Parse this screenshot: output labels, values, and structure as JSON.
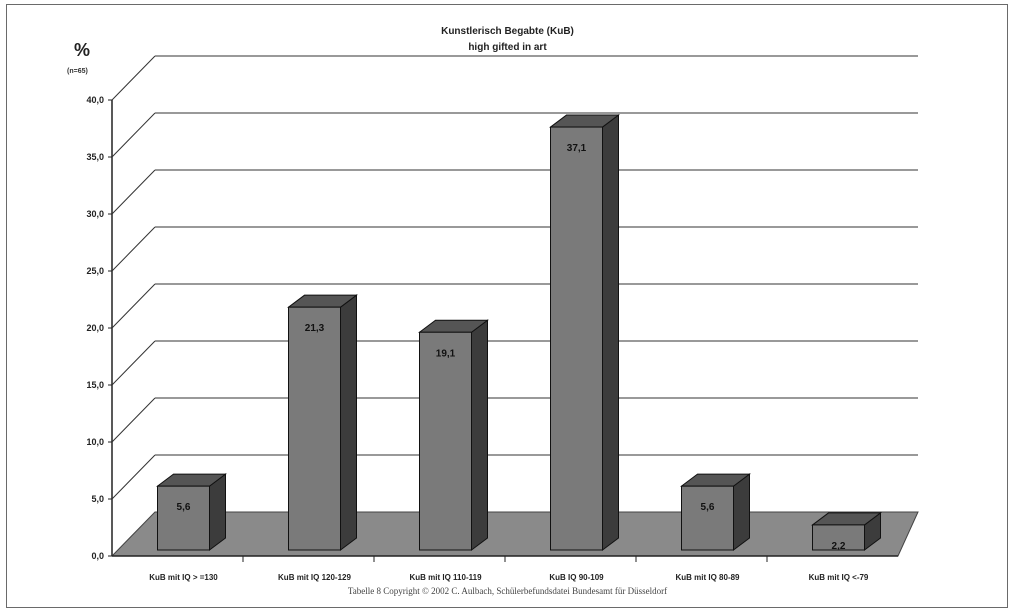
{
  "chart_data": {
    "type": "bar",
    "title": "Kunstlerisch Begabte (KuB)",
    "subtitle": "high gifted in art",
    "ylabel": "%",
    "n_label": "(n=65)",
    "ylim": [
      0,
      40
    ],
    "yticks": [
      "0,0",
      "5,0",
      "10,0",
      "15,0",
      "20,0",
      "25,0",
      "30,0",
      "35,0",
      "40,0"
    ],
    "categories": [
      "KuB mit IQ > =130",
      "KuB mit IQ 120-129",
      "KuB mit IQ 110-119",
      "KuB IQ 90-109",
      "KuB mit IQ 80-89",
      "KuB mit IQ <-79"
    ],
    "values": [
      5.6,
      21.3,
      19.1,
      37.1,
      5.6,
      2.2
    ],
    "value_labels": [
      "5,6",
      "21,3",
      "19,1",
      "37,1",
      "5,6",
      "2,2"
    ],
    "grid": true,
    "colors": {
      "bar_front": "#7a7a7a",
      "bar_top": "#555555",
      "bar_side": "#3c3c3c",
      "floor": "#8a8a8a",
      "grid": "#333333"
    }
  },
  "caption": "Tabelle 8  Copyright © 2002 C. Aulbach, Schülerbefundsdatei Bundesamt für Düsseldorf"
}
